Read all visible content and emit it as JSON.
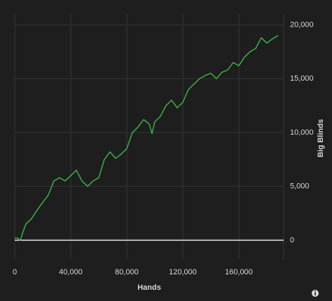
{
  "chart_data": {
    "type": "line",
    "x_label": "Hands",
    "y_label": "Big Blinds",
    "x": [
      0,
      2000,
      4000,
      6000,
      8000,
      12000,
      16000,
      20000,
      24000,
      28000,
      32000,
      36000,
      40000,
      44000,
      48000,
      52000,
      56000,
      60000,
      64000,
      68000,
      72000,
      76000,
      80000,
      84000,
      88000,
      92000,
      96000,
      98000,
      100000,
      104000,
      108000,
      112000,
      116000,
      120000,
      124000,
      128000,
      132000,
      136000,
      140000,
      144000,
      148000,
      152000,
      156000,
      160000,
      164000,
      168000,
      172000,
      176000,
      180000,
      184000,
      188000
    ],
    "series": [
      {
        "name": "Big Blinds",
        "color": "#3cb043",
        "values": [
          200,
          200,
          0,
          800,
          1500,
          2000,
          2800,
          3500,
          4200,
          5500,
          5800,
          5500,
          6000,
          6500,
          5500,
          5000,
          5500,
          5800,
          7500,
          8200,
          7600,
          8000,
          8500,
          10000,
          10500,
          11200,
          10800,
          9900,
          11000,
          11500,
          12500,
          13000,
          12300,
          12800,
          14000,
          14500,
          15000,
          15300,
          15500,
          15000,
          15600,
          15800,
          16500,
          16200,
          17000,
          17500,
          17800,
          18800,
          18300,
          18700,
          19000
        ]
      }
    ],
    "xlim": [
      0,
      192000
    ],
    "xticks": [
      {
        "value": 0,
        "label": "0"
      },
      {
        "value": 40000,
        "label": "40,000"
      },
      {
        "value": 80000,
        "label": "80,000"
      },
      {
        "value": 120000,
        "label": "120,000"
      },
      {
        "value": 160000,
        "label": "160,000"
      }
    ],
    "ylim": [
      -1800,
      21000
    ],
    "yticks": [
      {
        "value": 0,
        "label": "0"
      },
      {
        "value": 5000,
        "label": "5,000"
      },
      {
        "value": 10000,
        "label": "10,000"
      },
      {
        "value": 15000,
        "label": "15,000"
      },
      {
        "value": 20000,
        "label": "20,000"
      }
    ],
    "grid": true
  }
}
